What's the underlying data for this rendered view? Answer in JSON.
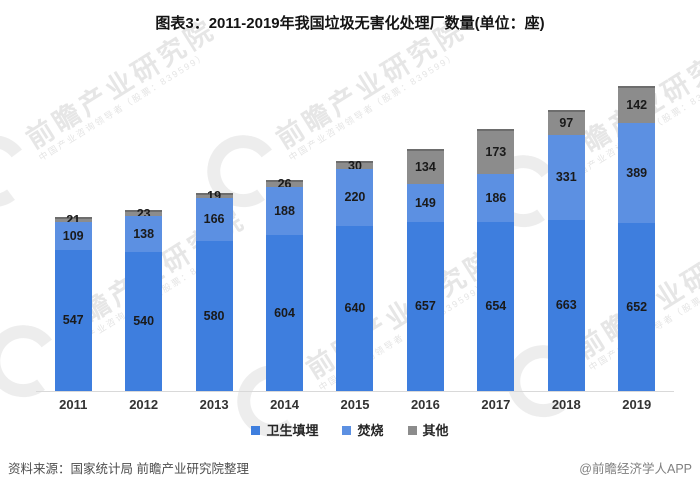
{
  "title": "图表3：2011-2019年我国垃圾无害化处理厂数量(单位：座)",
  "chart_data": {
    "type": "bar",
    "stacked": true,
    "title": "图表3：2011-2019年我国垃圾无害化处理厂数量(单位：座)",
    "unit": "座",
    "categories": [
      "2011",
      "2012",
      "2013",
      "2014",
      "2015",
      "2016",
      "2017",
      "2018",
      "2019"
    ],
    "series": [
      {
        "name": "卫生填埋",
        "color": "#3e7ede",
        "values": [
          547,
          540,
          580,
          604,
          640,
          657,
          654,
          663,
          652
        ]
      },
      {
        "name": "焚烧",
        "color": "#5c90e2",
        "values": [
          109,
          138,
          166,
          188,
          220,
          149,
          186,
          331,
          389
        ]
      },
      {
        "name": "其他",
        "color": "#8c8c8c",
        "values": [
          21,
          23,
          19,
          26,
          30,
          134,
          173,
          97,
          142
        ]
      }
    ],
    "legend_position": "bottom",
    "grid": false,
    "data_labels": true,
    "ylim": [
      0,
      1183
    ]
  },
  "footer": {
    "source": "资料来源：国家统计局 前瞻产业研究院整理",
    "credit": "@前瞻经济学人APP"
  },
  "watermark": {
    "text": "前瞻产业研究院",
    "subtext": "中国产业咨询领导者（股票：839599）"
  },
  "colors": {
    "axis_line": "#d9d9d9",
    "gray_segment_cap": "#6d6d6d",
    "value_label": "#1a1a1a"
  }
}
